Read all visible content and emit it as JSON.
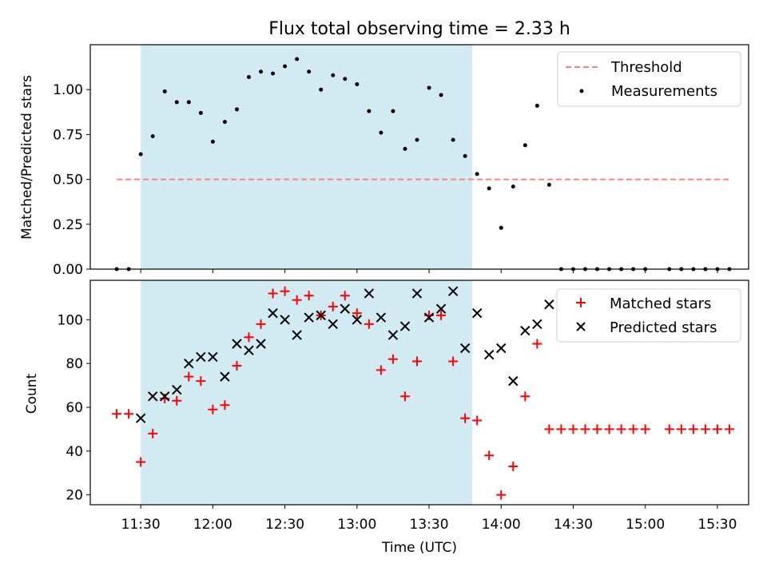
{
  "title": "Flux total observing time = 2.33 h",
  "colors": {
    "shade": "#add8e6",
    "threshold": "#ff7f7f",
    "measurement": "#000000",
    "matched": "#ff0000",
    "predicted": "#000000"
  },
  "chart_data": [
    {
      "type": "scatter",
      "panel": "top",
      "title": "Flux total observing time = 2.33 h",
      "xlabel": "",
      "ylabel": "Matched/Predicted stars",
      "xlim": [
        "11:09",
        "15:43"
      ],
      "ylim": [
        0,
        1.25
      ],
      "yticks": [
        "0.00",
        "0.25",
        "0.50",
        "0.75",
        "1.00"
      ],
      "shaded_span": [
        "11:30",
        "13:48"
      ],
      "legend_position": "top-right",
      "threshold": {
        "name": "Threshold",
        "value": 0.5,
        "x_start": "11:20",
        "x_end": "15:35",
        "style": "dashed"
      },
      "series": [
        {
          "name": "Measurements",
          "marker": "dot",
          "points": [
            [
              "11:20",
              0.0
            ],
            [
              "11:25",
              0.0
            ],
            [
              "11:30",
              0.64
            ],
            [
              "11:35",
              0.74
            ],
            [
              "11:40",
              0.99
            ],
            [
              "11:45",
              0.93
            ],
            [
              "11:50",
              0.93
            ],
            [
              "11:55",
              0.87
            ],
            [
              "12:00",
              0.71
            ],
            [
              "12:05",
              0.82
            ],
            [
              "12:10",
              0.89
            ],
            [
              "12:15",
              1.07
            ],
            [
              "12:20",
              1.1
            ],
            [
              "12:25",
              1.09
            ],
            [
              "12:30",
              1.13
            ],
            [
              "12:35",
              1.17
            ],
            [
              "12:40",
              1.1
            ],
            [
              "12:45",
              1.0
            ],
            [
              "12:50",
              1.08
            ],
            [
              "12:55",
              1.06
            ],
            [
              "13:00",
              1.03
            ],
            [
              "13:05",
              0.88
            ],
            [
              "13:10",
              0.76
            ],
            [
              "13:15",
              0.88
            ],
            [
              "13:20",
              0.67
            ],
            [
              "13:25",
              0.72
            ],
            [
              "13:30",
              1.01
            ],
            [
              "13:35",
              0.97
            ],
            [
              "13:40",
              0.72
            ],
            [
              "13:45",
              0.63
            ],
            [
              "13:50",
              0.53
            ],
            [
              "13:55",
              0.45
            ],
            [
              "14:00",
              0.23
            ],
            [
              "14:05",
              0.46
            ],
            [
              "14:10",
              0.69
            ],
            [
              "14:15",
              0.91
            ],
            [
              "14:20",
              0.47
            ],
            [
              "14:25",
              0.0
            ],
            [
              "14:30",
              0.0
            ],
            [
              "14:35",
              0.0
            ],
            [
              "14:40",
              0.0
            ],
            [
              "14:45",
              0.0
            ],
            [
              "14:50",
              0.0
            ],
            [
              "14:55",
              0.0
            ],
            [
              "15:00",
              0.0
            ],
            [
              "15:10",
              0.0
            ],
            [
              "15:15",
              0.0
            ],
            [
              "15:20",
              0.0
            ],
            [
              "15:25",
              0.0
            ],
            [
              "15:30",
              0.0
            ],
            [
              "15:35",
              0.0
            ]
          ]
        }
      ]
    },
    {
      "type": "scatter",
      "panel": "bottom",
      "title": "",
      "xlabel": "Time (UTC)",
      "ylabel": "Count",
      "xlim": [
        "11:09",
        "15:43"
      ],
      "ylim": [
        15.5,
        118
      ],
      "yticks": [
        "20",
        "40",
        "60",
        "80",
        "100"
      ],
      "xticks": [
        "11:30",
        "12:00",
        "12:30",
        "13:00",
        "13:30",
        "14:00",
        "14:30",
        "15:00",
        "15:30"
      ],
      "shaded_span": [
        "11:30",
        "13:48"
      ],
      "legend_position": "top-right",
      "series": [
        {
          "name": "Matched stars",
          "marker": "plus",
          "points": [
            [
              "11:20",
              57
            ],
            [
              "11:25",
              57
            ],
            [
              "11:30",
              35
            ],
            [
              "11:35",
              48
            ],
            [
              "11:40",
              64
            ],
            [
              "11:45",
              63
            ],
            [
              "11:50",
              74
            ],
            [
              "11:55",
              72
            ],
            [
              "12:00",
              59
            ],
            [
              "12:05",
              61
            ],
            [
              "12:10",
              79
            ],
            [
              "12:15",
              92
            ],
            [
              "12:20",
              98
            ],
            [
              "12:25",
              112
            ],
            [
              "12:30",
              113
            ],
            [
              "12:35",
              109
            ],
            [
              "12:40",
              111
            ],
            [
              "12:45",
              102
            ],
            [
              "12:50",
              106
            ],
            [
              "12:55",
              111
            ],
            [
              "13:00",
              103
            ],
            [
              "13:05",
              98
            ],
            [
              "13:10",
              77
            ],
            [
              "13:15",
              82
            ],
            [
              "13:20",
              65
            ],
            [
              "13:25",
              81
            ],
            [
              "13:30",
              102
            ],
            [
              "13:35",
              102
            ],
            [
              "13:40",
              81
            ],
            [
              "13:45",
              55
            ],
            [
              "13:50",
              54
            ],
            [
              "13:55",
              38
            ],
            [
              "14:00",
              20
            ],
            [
              "14:05",
              33
            ],
            [
              "14:10",
              65
            ],
            [
              "14:15",
              89
            ],
            [
              "14:20",
              50
            ],
            [
              "14:25",
              50
            ],
            [
              "14:30",
              50
            ],
            [
              "14:35",
              50
            ],
            [
              "14:40",
              50
            ],
            [
              "14:45",
              50
            ],
            [
              "14:50",
              50
            ],
            [
              "14:55",
              50
            ],
            [
              "15:00",
              50
            ],
            [
              "15:10",
              50
            ],
            [
              "15:15",
              50
            ],
            [
              "15:20",
              50
            ],
            [
              "15:25",
              50
            ],
            [
              "15:30",
              50
            ],
            [
              "15:35",
              50
            ]
          ]
        },
        {
          "name": "Predicted stars",
          "marker": "x",
          "points": [
            [
              "11:30",
              55
            ],
            [
              "11:35",
              65
            ],
            [
              "11:40",
              65
            ],
            [
              "11:45",
              68
            ],
            [
              "11:50",
              80
            ],
            [
              "11:55",
              83
            ],
            [
              "12:00",
              83
            ],
            [
              "12:05",
              74
            ],
            [
              "12:10",
              89
            ],
            [
              "12:15",
              86
            ],
            [
              "12:20",
              89
            ],
            [
              "12:25",
              103
            ],
            [
              "12:30",
              100
            ],
            [
              "12:35",
              93
            ],
            [
              "12:40",
              101
            ],
            [
              "12:45",
              102
            ],
            [
              "12:50",
              98
            ],
            [
              "12:55",
              105
            ],
            [
              "13:00",
              100
            ],
            [
              "13:05",
              112
            ],
            [
              "13:10",
              101
            ],
            [
              "13:15",
              93
            ],
            [
              "13:20",
              97
            ],
            [
              "13:25",
              112
            ],
            [
              "13:30",
              101
            ],
            [
              "13:35",
              105
            ],
            [
              "13:40",
              113
            ],
            [
              "13:45",
              87
            ],
            [
              "13:50",
              103
            ],
            [
              "13:55",
              84
            ],
            [
              "14:00",
              87
            ],
            [
              "14:05",
              72
            ],
            [
              "14:10",
              95
            ],
            [
              "14:15",
              98
            ],
            [
              "14:20",
              107
            ]
          ]
        }
      ]
    }
  ]
}
